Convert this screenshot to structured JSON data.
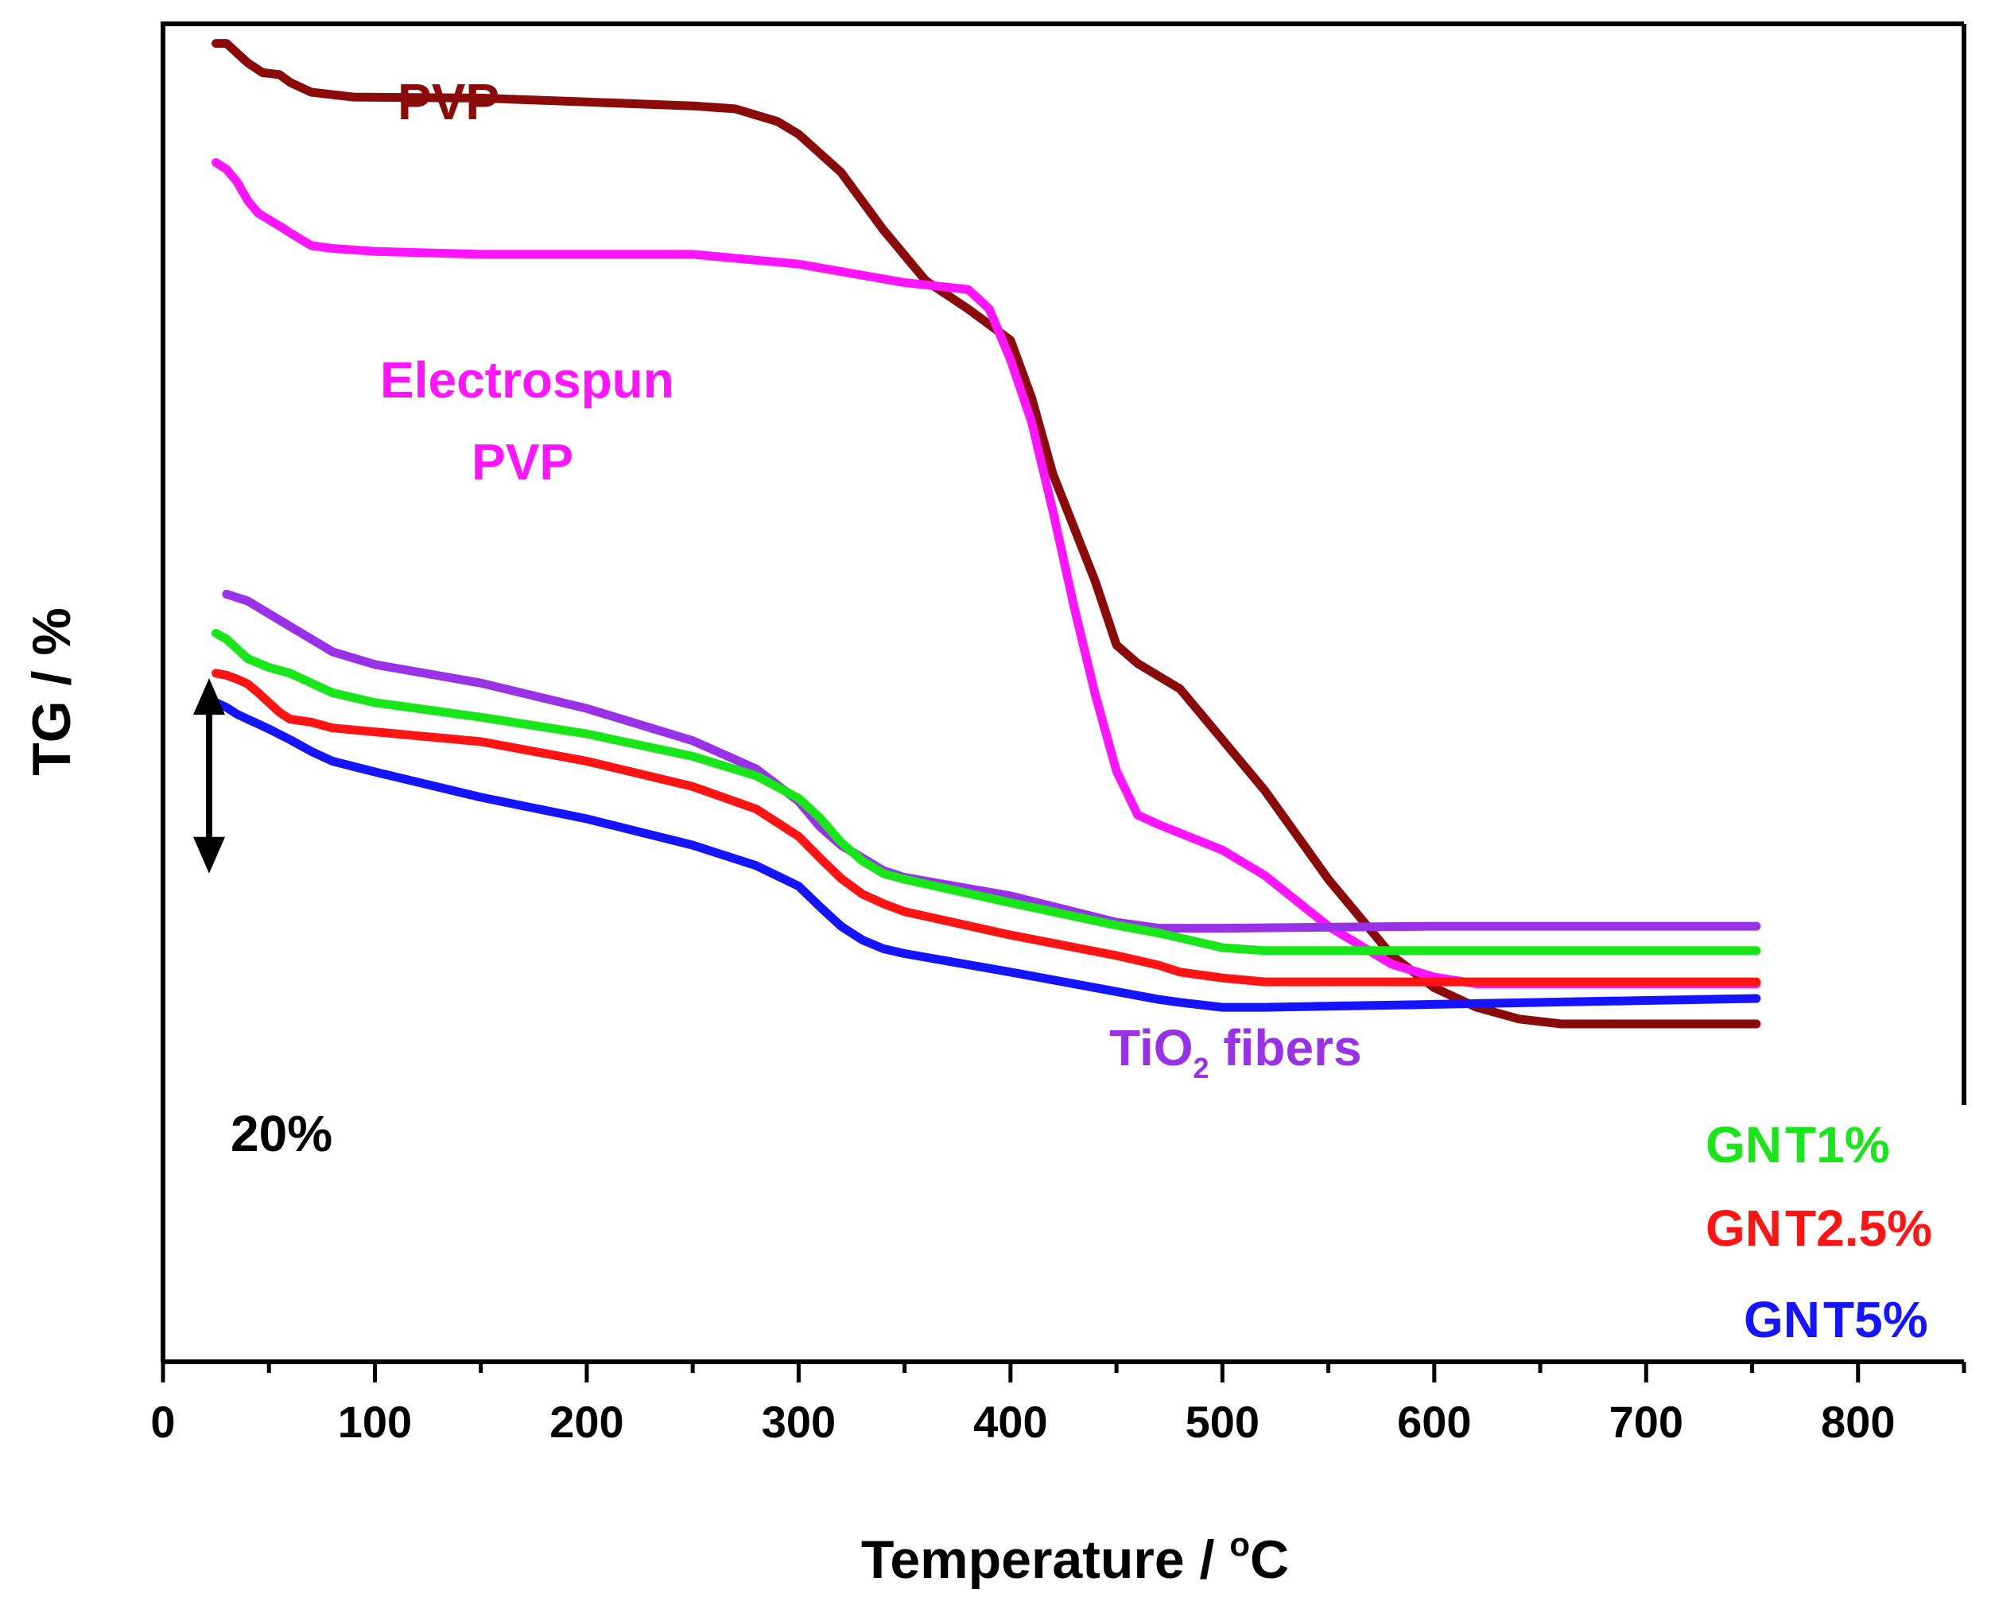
{
  "chart_data": {
    "type": "line",
    "xlabel": "Temperature / °C",
    "xlabel_parts": [
      "Temperature / ",
      "o",
      "C"
    ],
    "ylabel": "TG / %",
    "xlim": [
      0,
      850
    ],
    "xticks": [
      0,
      100,
      200,
      300,
      400,
      500,
      600,
      700,
      800
    ],
    "ylim": [
      0,
      137
    ],
    "yticks_shown": false,
    "scale_bar": {
      "label": "20%",
      "span": 20
    },
    "grid": false,
    "series": [
      {
        "name": "PVP",
        "label_lines": [
          "PVP"
        ],
        "color": "#8b0a0a",
        "x": [
          25,
          30,
          35,
          40,
          47,
          55,
          60,
          70,
          90,
          150,
          200,
          250,
          270,
          290,
          300,
          320,
          340,
          360,
          380,
          400,
          410,
          420,
          440,
          450,
          460,
          480,
          500,
          520,
          550,
          580,
          600,
          620,
          640,
          660,
          700,
          752
        ],
        "y": [
          135,
          135,
          134,
          133,
          132,
          131.8,
          131,
          130,
          129.5,
          129.4,
          129,
          128.6,
          128.3,
          127,
          125.7,
          121.8,
          115.9,
          110.7,
          107.8,
          104.6,
          98.7,
          90.9,
          79.9,
          73.4,
          71.5,
          68.9,
          63.7,
          58.5,
          49.4,
          41.6,
          38.3,
          36.3,
          35.1,
          34.6,
          34.6,
          34.6
        ]
      },
      {
        "name": "Electrospun PVP",
        "label_lines": [
          "Electrospun",
          "PVP"
        ],
        "color": "#ff14ff",
        "x": [
          25,
          30,
          35,
          40,
          45,
          55,
          60,
          70,
          80,
          100,
          150,
          250,
          300,
          350,
          380,
          390,
          400,
          410,
          420,
          430,
          440,
          450,
          460,
          470,
          500,
          520,
          550,
          580,
          600,
          620,
          640,
          700,
          752
        ],
        "y": [
          122.8,
          122.1,
          120.8,
          118.9,
          117.6,
          116.3,
          115.6,
          114.3,
          114,
          113.7,
          113.4,
          113.4,
          112.4,
          110.5,
          109.8,
          107.8,
          102.6,
          96.2,
          87.1,
          77.3,
          68.3,
          60.5,
          56,
          55,
          52.4,
          49.8,
          44.6,
          40.7,
          39.4,
          38.7,
          38.7,
          38.7,
          38.7
        ]
      },
      {
        "name": "TiO2 fibers",
        "label_parts": [
          "TiO",
          "2",
          " fibers"
        ],
        "color": "#9932e6",
        "x": [
          30,
          40,
          50,
          60,
          70,
          80,
          100,
          150,
          200,
          250,
          280,
          300,
          310,
          320,
          330,
          340,
          350,
          400,
          450,
          470,
          480,
          500,
          600,
          700,
          752
        ],
        "y": [
          78.6,
          77.9,
          76.6,
          75.3,
          74,
          72.7,
          71.4,
          69.5,
          66.9,
          63.6,
          60.7,
          57.4,
          54.8,
          52.9,
          51.6,
          50.3,
          49.6,
          47.7,
          45,
          44.4,
          44.4,
          44.4,
          44.6,
          44.6,
          44.6
        ]
      },
      {
        "name": "GNT1%",
        "label_parts": [
          "GN",
          "T1%"
        ],
        "color": "#19e619",
        "x": [
          25,
          30,
          40,
          50,
          60,
          70,
          80,
          100,
          150,
          200,
          250,
          280,
          300,
          310,
          320,
          330,
          340,
          350,
          400,
          450,
          470,
          480,
          500,
          520,
          600,
          700,
          752
        ],
        "y": [
          74.6,
          74,
          72,
          71.1,
          70.5,
          69.5,
          68.5,
          67.5,
          66,
          64.3,
          62,
          60,
          57.7,
          55.7,
          53.2,
          51.3,
          50,
          49.4,
          47,
          44.7,
          43.9,
          43.4,
          42.4,
          42.1,
          42.1,
          42.1,
          42.1
        ]
      },
      {
        "name": "GNT2.5%",
        "label_parts": [
          "GN",
          "T2.5%"
        ],
        "color": "#ff1414",
        "x": [
          25,
          30,
          35,
          40,
          45,
          50,
          55,
          60,
          70,
          80,
          100,
          150,
          200,
          250,
          280,
          300,
          310,
          320,
          330,
          340,
          350,
          400,
          450,
          470,
          480,
          500,
          520,
          600,
          700,
          752
        ],
        "y": [
          70.5,
          70.3,
          69.9,
          69.4,
          68.5,
          67.5,
          66.5,
          65.8,
          65.5,
          64.9,
          64.5,
          63.5,
          61.5,
          58.9,
          56.6,
          53.8,
          51.6,
          49.5,
          47.9,
          46.9,
          46.1,
          43.7,
          41.6,
          40.6,
          39.9,
          39.3,
          38.9,
          38.9,
          38.9,
          38.9
        ]
      },
      {
        "name": "GNT5%",
        "label_parts": [
          "GN",
          "T5%"
        ],
        "color": "#1414ff",
        "x": [
          25,
          30,
          35,
          40,
          45,
          50,
          60,
          70,
          80,
          100,
          150,
          200,
          250,
          280,
          300,
          310,
          320,
          330,
          340,
          350,
          400,
          450,
          460,
          470,
          480,
          500,
          520,
          600,
          700,
          752
        ],
        "y": [
          67.5,
          67,
          66.3,
          65.8,
          65.3,
          64.8,
          63.7,
          62.5,
          61.5,
          60.4,
          57.8,
          55.6,
          52.9,
          50.8,
          48.7,
          46.6,
          44.6,
          43.2,
          42.3,
          41.8,
          39.9,
          37.9,
          37.5,
          37.1,
          36.8,
          36.3,
          36.3,
          36.6,
          37,
          37.2
        ]
      }
    ]
  }
}
